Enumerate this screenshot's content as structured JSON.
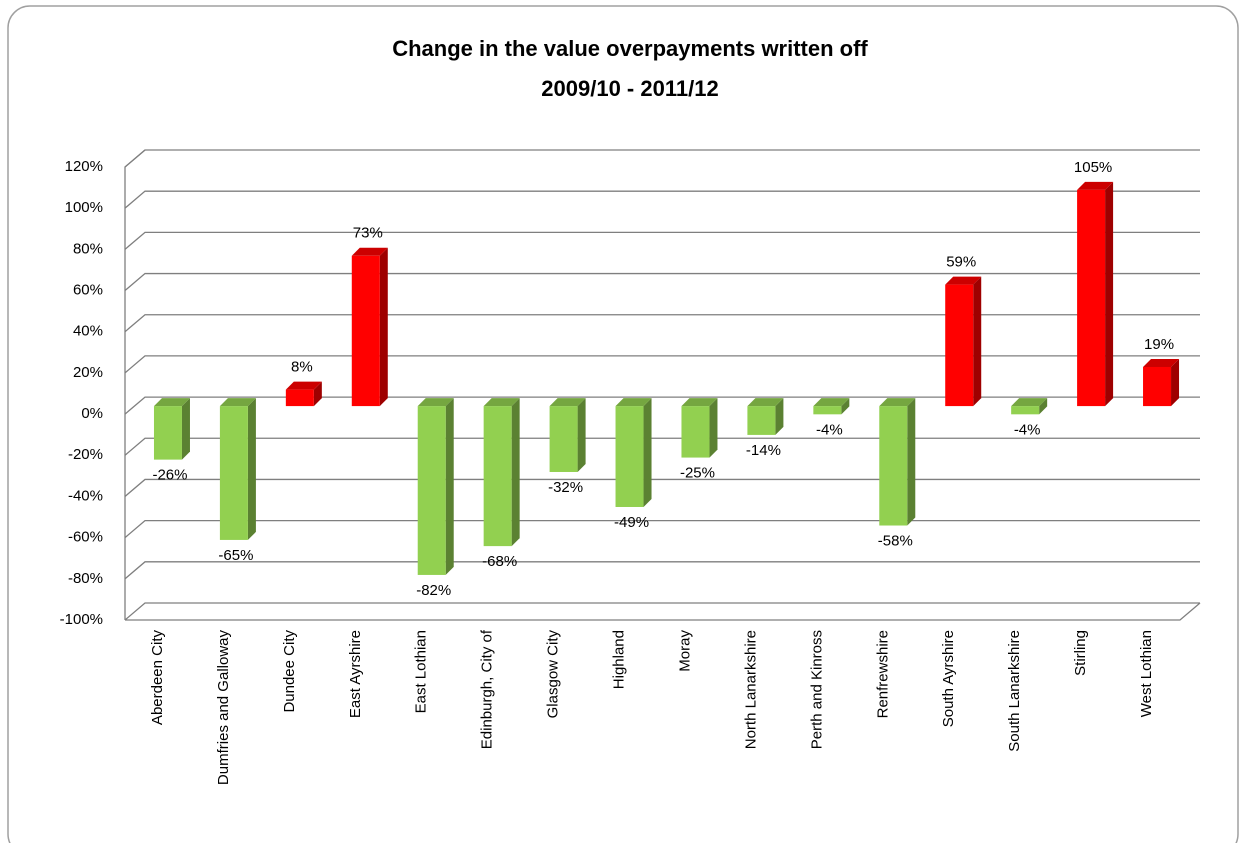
{
  "chart_data": {
    "type": "bar3d",
    "title": [
      "Change in the value overpayments written off",
      "2009/10 - 2011/12"
    ],
    "categories": [
      "Aberdeen City",
      "Dumfries and Galloway",
      "Dundee City",
      "East Ayrshire",
      "East Lothian",
      "Edinburgh, City of",
      "Glasgow City",
      "Highland",
      "Moray",
      "North Lanarkshire",
      "Perth and Kinross",
      "Renfrewshire",
      "South Ayrshire",
      "South Lanarkshire",
      "Stirling",
      "West Lothian"
    ],
    "values": [
      -26,
      -65,
      8,
      73,
      -82,
      -68,
      -32,
      -49,
      -25,
      -14,
      -4,
      -58,
      59,
      -4,
      105,
      19
    ],
    "value_labels": [
      "-26%",
      "-65%",
      "8%",
      "73%",
      "-82%",
      "-68%",
      "-32%",
      "-49%",
      "-25%",
      "-14%",
      "-4%",
      "-58%",
      "59%",
      "-4%",
      "105%",
      "19%"
    ],
    "colors": [
      "#92d050",
      "#92d050",
      "#ff0000",
      "#ff0000",
      "#92d050",
      "#92d050",
      "#92d050",
      "#92d050",
      "#92d050",
      "#92d050",
      "#92d050",
      "#92d050",
      "#ff0000",
      "#92d050",
      "#ff0000",
      "#ff0000"
    ],
    "ylim": [
      -100,
      120
    ],
    "yticks": [
      {
        "value": -100,
        "label": "-100%"
      },
      {
        "value": -80,
        "label": "-80%"
      },
      {
        "value": -60,
        "label": "-60%"
      },
      {
        "value": -40,
        "label": "-40%"
      },
      {
        "value": -20,
        "label": "-20%"
      },
      {
        "value": 0,
        "label": "0%"
      },
      {
        "value": 20,
        "label": "20%"
      },
      {
        "value": 40,
        "label": "40%"
      },
      {
        "value": 60,
        "label": "60%"
      },
      {
        "value": 80,
        "label": "80%"
      },
      {
        "value": 100,
        "label": "100%"
      },
      {
        "value": 120,
        "label": "120%"
      }
    ],
    "grid": true
  }
}
